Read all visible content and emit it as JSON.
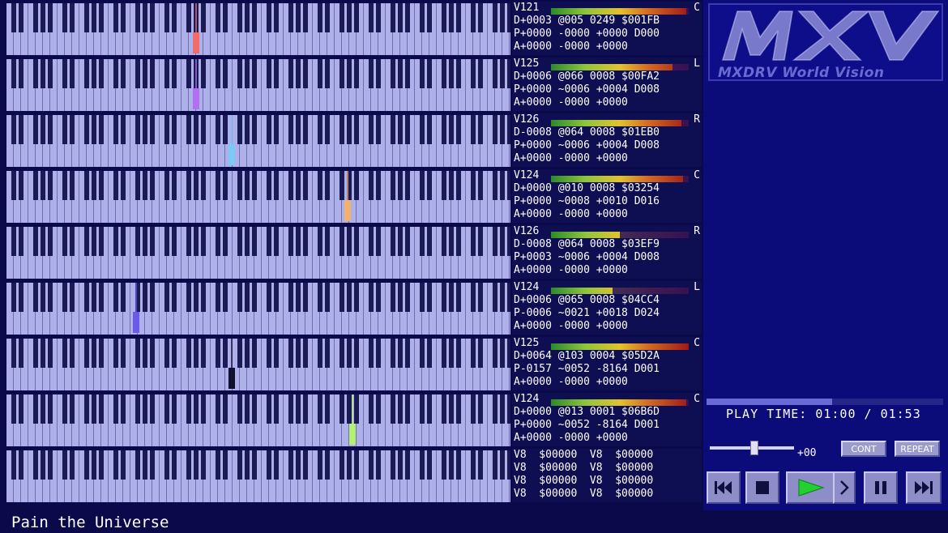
{
  "app": {
    "logo_text": "MXV",
    "logo_subtitle": "MXDRV World Vision"
  },
  "channels": [
    {
      "vol": "V121",
      "pan": "C",
      "meter": 0.98,
      "line2": "D+0003 @005 0249 $001FB",
      "line3": "P+0000 -0000 +0000 D000",
      "line4": "A+0000 -0000 +0000",
      "note_color": "#f06b6b",
      "note_pos": 0.37
    },
    {
      "vol": "V125",
      "pan": "L",
      "meter": 0.88,
      "line2": "D+0006 @066 0008 $00FA2",
      "line3": "P+0000 ~0006 +0004 D008",
      "line4": "A+0000 -0000 +0000",
      "note_color": "#b070f0",
      "note_pos": 0.37
    },
    {
      "vol": "V126",
      "pan": "R",
      "meter": 0.95,
      "line2": "D-0008 @064 0008 $01EB0",
      "line3": "P+0000 ~0006 +0004 D008",
      "line4": "A+0000 -0000 +0000",
      "note_color": "#7ec8f5",
      "note_pos": 0.44
    },
    {
      "vol": "V124",
      "pan": "C",
      "meter": 0.96,
      "line2": "D+0000 @010 0008 $03254",
      "line3": "P+0000 ~0008 +0010 D016",
      "line4": "A+0000 -0000 +0000",
      "note_color": "#f5b070",
      "note_pos": 0.67
    },
    {
      "vol": "V126",
      "pan": "R",
      "meter": 0.5,
      "line2": "D-0008 @064 0008 $03EF9",
      "line3": "P+0003 ~0006 +0004 D008",
      "line4": "A+0000 -0000 +0000",
      "note_color": "",
      "note_pos": 0
    },
    {
      "vol": "V124",
      "pan": "L",
      "meter": 0.45,
      "line2": "D+0006 @065 0008 $04CC4",
      "line3": "P-0006 ~0021 +0018 D024",
      "line4": "A+0000 -0000 +0000",
      "note_color": "#6a5ae8",
      "note_pos": 0.25
    },
    {
      "vol": "V125",
      "pan": "C",
      "meter": 1.0,
      "line2": "D+0064 @103 0004 $05D2A",
      "line3": "P-0157 ~0052 -8164 D001",
      "line4": "A+0000 -0000 +0000",
      "note_color": "#101030",
      "note_pos": 0.44
    },
    {
      "vol": "V124",
      "pan": "C",
      "meter": 0.98,
      "line2": "D+0000 @013 0001 $06B6D",
      "line3": "P+0000 ~0052 -8164 D001",
      "line4": "A+0000 -0000 +0000",
      "note_color": "#b5f070",
      "note_pos": 0.68
    }
  ],
  "pcm": {
    "rows": [
      "V8  $00000  V8  $00000",
      "V8  $00000  V8  $00000",
      "V8  $00000  V8  $00000",
      "V8  $00000  V8  $00000"
    ]
  },
  "player": {
    "play_time_label": "PLAY TIME:",
    "current_time": "01:00",
    "separator": "/",
    "total_time": "01:53",
    "progress": 0.53,
    "speed": "+00",
    "cont_label": "CONT",
    "repeat_label": "REPEAT"
  },
  "song": {
    "title": "Pain the Universe"
  },
  "icons": {
    "prev": "skip-back-icon",
    "stop": "stop-icon",
    "play": "play-icon",
    "next_frame": "chevron-right-icon",
    "pause": "pause-icon",
    "skip": "skip-forward-icon"
  }
}
